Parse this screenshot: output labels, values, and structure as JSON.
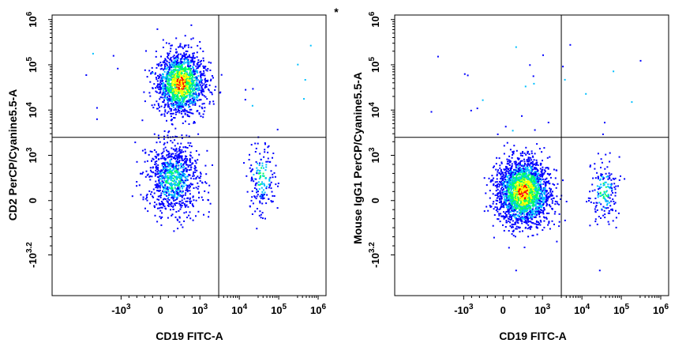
{
  "chart_data": [
    {
      "type": "scatter",
      "title": "",
      "xlabel": "CD19 FITC-A",
      "ylabel": "CD2 PerCP/Cyanine5.5-A",
      "x_scale": "biexponential",
      "y_scale": "biexponential",
      "x_ticks": [
        {
          "value": -1000,
          "base": "-10",
          "exp": "3"
        },
        {
          "value": 0,
          "base": "0",
          "exp": ""
        },
        {
          "value": 1000,
          "base": "10",
          "exp": "3"
        },
        {
          "value": 10000,
          "base": "10",
          "exp": "4"
        },
        {
          "value": 100000,
          "base": "10",
          "exp": "5"
        },
        {
          "value": 1000000,
          "base": "10",
          "exp": "6"
        }
      ],
      "y_ticks": [
        {
          "value": -1585,
          "base": "-10",
          "exp": "3.2"
        },
        {
          "value": 0,
          "base": "0",
          "exp": ""
        },
        {
          "value": 1000,
          "base": "10",
          "exp": "3"
        },
        {
          "value": 10000,
          "base": "10",
          "exp": "4"
        },
        {
          "value": 100000,
          "base": "10",
          "exp": "5"
        },
        {
          "value": 1000000,
          "base": "10",
          "exp": "6"
        }
      ],
      "quadrant_gate": {
        "x": 3000,
        "y": 2500
      },
      "populations": [
        {
          "x_center": 500,
          "y_center": 40000,
          "x_spread": 0.55,
          "y_spread": 0.75,
          "n": 1500,
          "note_asterisk": false
        },
        {
          "x_center": 300,
          "y_center": 500,
          "x_spread": 0.6,
          "y_spread": 0.9,
          "n": 900
        },
        {
          "x_center": 35000,
          "y_center": 500,
          "x_spread": 0.35,
          "y_spread": 0.9,
          "n": 170
        }
      ],
      "annotation": "*",
      "colors": {
        "low": "#0000ff",
        "mid": "#00c0ff",
        "midhigh": "#00ff60",
        "high": "#ffff00",
        "peak": "#ff0000"
      }
    },
    {
      "type": "scatter",
      "title": "",
      "xlabel": "CD19 FITC-A",
      "ylabel": "Mouse IgG1 PerCP/Cyanine5.5-A",
      "x_scale": "biexponential",
      "y_scale": "biexponential",
      "x_ticks": [
        {
          "value": -1000,
          "base": "-10",
          "exp": "3"
        },
        {
          "value": 0,
          "base": "0",
          "exp": ""
        },
        {
          "value": 1000,
          "base": "10",
          "exp": "3"
        },
        {
          "value": 10000,
          "base": "10",
          "exp": "4"
        },
        {
          "value": 100000,
          "base": "10",
          "exp": "5"
        },
        {
          "value": 1000000,
          "base": "10",
          "exp": "6"
        }
      ],
      "y_ticks": [
        {
          "value": -1585,
          "base": "-10",
          "exp": "3.2"
        },
        {
          "value": 0,
          "base": "0",
          "exp": ""
        },
        {
          "value": 1000,
          "base": "10",
          "exp": "3"
        },
        {
          "value": 10000,
          "base": "10",
          "exp": "4"
        },
        {
          "value": 100000,
          "base": "10",
          "exp": "5"
        },
        {
          "value": 1000000,
          "base": "10",
          "exp": "6"
        }
      ],
      "quadrant_gate": {
        "x": 3000,
        "y": 2500
      },
      "populations": [
        {
          "x_center": 500,
          "y_center": 200,
          "x_spread": 0.6,
          "y_spread": 0.8,
          "n": 2200
        },
        {
          "x_center": 35000,
          "y_center": 200,
          "x_spread": 0.35,
          "y_spread": 0.8,
          "n": 170
        }
      ],
      "annotation": "",
      "colors": {
        "low": "#0000ff",
        "mid": "#00c0ff",
        "midhigh": "#00ff60",
        "high": "#ffff00",
        "peak": "#ff0000"
      }
    }
  ]
}
